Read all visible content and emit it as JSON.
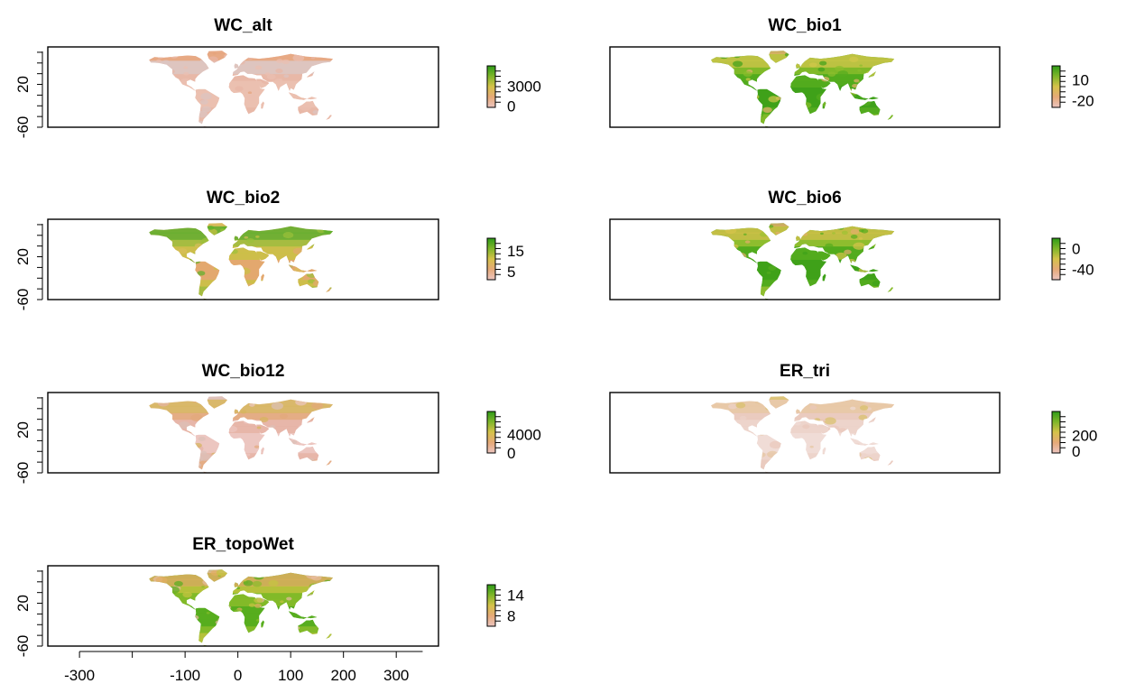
{
  "chart_data": [
    {
      "type": "heatmap",
      "title": "WC_alt",
      "ylim": [
        -60,
        90
      ],
      "yticks": [
        "20",
        "-60"
      ],
      "legend_ticks": [
        "3000",
        "0"
      ],
      "legend_range": [
        -200,
        6000
      ],
      "land_colors": [
        "#ebbfb0",
        "#e8b6a6",
        "#dcc5c2",
        "#e6a47c"
      ]
    },
    {
      "type": "heatmap",
      "title": "WC_bio1",
      "ylim": [
        -60,
        90
      ],
      "yticks": [],
      "legend_ticks": [
        "10",
        "-20"
      ],
      "legend_range": [
        -30,
        30
      ],
      "land_colors": [
        "#3fa11a",
        "#56ad1e",
        "#8cbd2c",
        "#d2c84a",
        "#e8b06e"
      ]
    },
    {
      "type": "heatmap",
      "title": "WC_bio2",
      "ylim": [
        -60,
        90
      ],
      "yticks": [
        "20",
        "-60"
      ],
      "legend_ticks": [
        "15",
        "5"
      ],
      "legend_range": [
        1,
        21
      ],
      "land_colors": [
        "#e3a86e",
        "#c9c244",
        "#9bc03a",
        "#5db02a",
        "#d8bd5a"
      ]
    },
    {
      "type": "heatmap",
      "title": "WC_bio6",
      "ylim": [
        -60,
        90
      ],
      "yticks": [],
      "legend_ticks": [
        "0",
        "-40"
      ],
      "legend_range": [
        -60,
        20
      ],
      "land_colors": [
        "#3fa11a",
        "#56ad1e",
        "#9cc232",
        "#d7c34b",
        "#e4ad6c"
      ]
    },
    {
      "type": "heatmap",
      "title": "WC_bio12",
      "ylim": [
        -60,
        90
      ],
      "yticks": [
        "20",
        "-60"
      ],
      "legend_ticks": [
        "4000",
        "0"
      ],
      "legend_range": [
        0,
        9000
      ],
      "land_colors": [
        "#ecc6c0",
        "#e6b3a5",
        "#e3a87a",
        "#d6b55c",
        "#dcc0b8"
      ]
    },
    {
      "type": "heatmap",
      "title": "ER_tri",
      "ylim": [
        -60,
        90
      ],
      "yticks": [],
      "legend_ticks": [
        "200",
        "0"
      ],
      "legend_range": [
        -20,
        500
      ],
      "land_colors": [
        "#f0dcd6",
        "#ecd2c9",
        "#e9c8bb",
        "#e6c6a0",
        "#d8c06a"
      ]
    },
    {
      "type": "heatmap",
      "title": "ER_topoWet",
      "ylim": [
        -60,
        90
      ],
      "yticks": [
        "20",
        "-60"
      ],
      "legend_ticks": [
        "14",
        "8"
      ],
      "legend_range": [
        5,
        17
      ],
      "land_colors": [
        "#57ad1f",
        "#89bc2a",
        "#c5c440",
        "#e2ae62",
        "#e8bba0"
      ],
      "xticks": [
        "-300",
        "-100",
        "0",
        "100",
        "200",
        "300"
      ],
      "xlim": [
        -360,
        380
      ]
    }
  ],
  "legend_gradient": [
    "#2e9b18",
    "#7fb62a",
    "#d5c24a",
    "#e5a978",
    "#ecc5c0"
  ]
}
